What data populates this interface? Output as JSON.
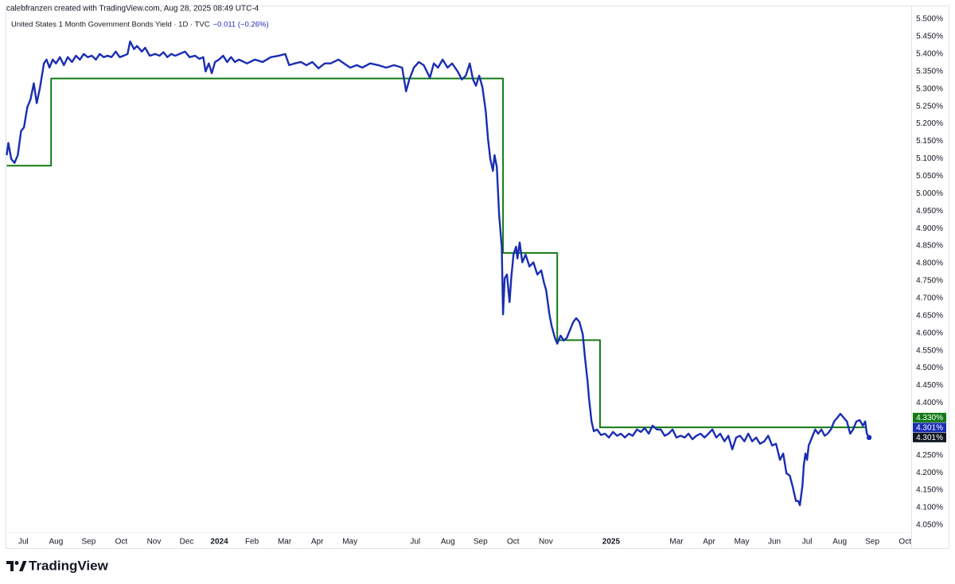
{
  "chart_data": {
    "type": "line",
    "header": "calebfranzen created with TradingView.com, Aug 28, 2025 08:49 UTC-4",
    "title": "United States 1 Month Government Bonds Yield · 1D · TVC",
    "change": "−0.011 (−0.26%)",
    "watermark": "TradingView",
    "grid": false,
    "xlim": [
      -0.52,
      27.19
    ],
    "ylim": [
      3.9815,
      5.5365
    ],
    "xticks": [
      {
        "value": 0,
        "label": "Jul"
      },
      {
        "value": 1,
        "label": "Aug"
      },
      {
        "value": 2,
        "label": "Sep"
      },
      {
        "value": 3,
        "label": "Oct"
      },
      {
        "value": 4,
        "label": "Nov"
      },
      {
        "value": 5,
        "label": "Dec"
      },
      {
        "value": 6,
        "label": "2024"
      },
      {
        "value": 7,
        "label": "Feb"
      },
      {
        "value": 8,
        "label": "Mar"
      },
      {
        "value": 9,
        "label": "Apr"
      },
      {
        "value": 10,
        "label": "May"
      },
      {
        "value": 12,
        "label": "Jul"
      },
      {
        "value": 13,
        "label": "Aug"
      },
      {
        "value": 14,
        "label": "Sep"
      },
      {
        "value": 15,
        "label": "Oct"
      },
      {
        "value": 16,
        "label": "Nov"
      },
      {
        "value": 18,
        "label": "2025"
      },
      {
        "value": 20,
        "label": "Mar"
      },
      {
        "value": 21,
        "label": "Apr"
      },
      {
        "value": 22,
        "label": "May"
      },
      {
        "value": 23,
        "label": "Jun"
      },
      {
        "value": 24,
        "label": "Jul"
      },
      {
        "value": 25,
        "label": "Aug"
      },
      {
        "value": 26,
        "label": "Sep"
      },
      {
        "value": 27,
        "label": "Oct"
      }
    ],
    "yticks": [
      {
        "value": 4.05,
        "label": "4.050%"
      },
      {
        "value": 4.1,
        "label": "4.100%"
      },
      {
        "value": 4.15,
        "label": "4.150%"
      },
      {
        "value": 4.2,
        "label": "4.200%"
      },
      {
        "value": 4.25,
        "label": "4.250%"
      },
      {
        "value": 4.3,
        "label": "4.300%"
      },
      {
        "value": 4.35,
        "label": "4.350%"
      },
      {
        "value": 4.4,
        "label": "4.400%"
      },
      {
        "value": 4.45,
        "label": "4.450%"
      },
      {
        "value": 4.5,
        "label": "4.500%"
      },
      {
        "value": 4.55,
        "label": "4.550%"
      },
      {
        "value": 4.6,
        "label": "4.600%"
      },
      {
        "value": 4.65,
        "label": "4.650%"
      },
      {
        "value": 4.7,
        "label": "4.700%"
      },
      {
        "value": 4.75,
        "label": "4.750%"
      },
      {
        "value": 4.8,
        "label": "4.800%"
      },
      {
        "value": 4.85,
        "label": "4.850%"
      },
      {
        "value": 4.9,
        "label": "4.900%"
      },
      {
        "value": 4.95,
        "label": "4.950%"
      },
      {
        "value": 5.0,
        "label": "5.000%"
      },
      {
        "value": 5.05,
        "label": "5.050%"
      },
      {
        "value": 5.1,
        "label": "5.100%"
      },
      {
        "value": 5.15,
        "label": "5.150%"
      },
      {
        "value": 5.2,
        "label": "5.200%"
      },
      {
        "value": 5.25,
        "label": "5.250%"
      },
      {
        "value": 5.3,
        "label": "5.300%"
      },
      {
        "value": 5.35,
        "label": "5.350%"
      },
      {
        "value": 5.4,
        "label": "5.400%"
      },
      {
        "value": 5.45,
        "label": "5.450%"
      },
      {
        "value": 5.5,
        "label": "5.500%"
      }
    ],
    "last_price_label": {
      "value": 4.301,
      "label": "4.301%"
    },
    "series": [
      {
        "color": "#1a2db3",
        "last_label": {
          "value": 4.301,
          "label": "4.301%"
        },
        "x": [
          -0.51,
          -0.46,
          -0.37,
          -0.27,
          -0.17,
          -0.07,
          0.02,
          0.12,
          0.22,
          0.32,
          0.41,
          0.51,
          0.63,
          0.71,
          0.8,
          0.9,
          1.0,
          1.12,
          1.24,
          1.36,
          1.49,
          1.61,
          1.73,
          1.85,
          1.97,
          2.1,
          2.22,
          2.34,
          2.46,
          2.58,
          2.7,
          2.83,
          2.95,
          3.07,
          3.19,
          3.27,
          3.39,
          3.48,
          3.63,
          3.73,
          3.87,
          4.04,
          4.17,
          4.29,
          4.41,
          4.53,
          4.65,
          4.78,
          4.95,
          5.09,
          5.26,
          5.39,
          5.51,
          5.58,
          5.68,
          5.77,
          5.87,
          5.99,
          6.12,
          6.24,
          6.36,
          6.48,
          6.6,
          6.85,
          7.09,
          7.33,
          7.58,
          7.82,
          8.02,
          8.14,
          8.31,
          8.5,
          8.67,
          8.85,
          9.04,
          9.23,
          9.41,
          9.65,
          9.82,
          10.01,
          10.21,
          10.38,
          10.62,
          10.87,
          11.11,
          11.35,
          11.6,
          11.72,
          11.82,
          11.96,
          12.11,
          12.26,
          12.45,
          12.57,
          12.7,
          12.84,
          12.99,
          13.13,
          13.3,
          13.43,
          13.55,
          13.67,
          13.77,
          13.86,
          13.96,
          14.06,
          14.16,
          14.23,
          14.3,
          14.38,
          14.43,
          14.5,
          14.57,
          14.65,
          14.69,
          14.74,
          14.81,
          14.89,
          14.94,
          15.01,
          15.09,
          15.13,
          15.2,
          15.28,
          15.38,
          15.5,
          15.62,
          15.74,
          15.86,
          15.94,
          16.01,
          16.11,
          16.18,
          16.28,
          16.35,
          16.45,
          16.55,
          16.64,
          16.74,
          16.84,
          16.93,
          17.03,
          17.13,
          17.2,
          17.28,
          17.32,
          17.4,
          17.47,
          17.57,
          17.69,
          17.81,
          17.93,
          18.06,
          18.18,
          18.3,
          18.42,
          18.54,
          18.66,
          18.79,
          18.91,
          19.03,
          19.15,
          19.27,
          19.4,
          19.52,
          19.64,
          19.76,
          19.88,
          20.0,
          20.13,
          20.25,
          20.37,
          20.49,
          20.61,
          20.74,
          20.86,
          20.98,
          21.1,
          21.22,
          21.34,
          21.47,
          21.59,
          21.71,
          21.83,
          21.95,
          22.08,
          22.2,
          22.32,
          22.44,
          22.56,
          22.69,
          22.81,
          22.93,
          23.05,
          23.17,
          23.27,
          23.37,
          23.47,
          23.56,
          23.66,
          23.73,
          23.78,
          23.86,
          23.9,
          23.95,
          24.0,
          24.05,
          24.15,
          24.25,
          24.34,
          24.44,
          24.54,
          24.63,
          24.73,
          24.83,
          24.93,
          25.02,
          25.12,
          25.22,
          25.32,
          25.41,
          25.51,
          25.61,
          25.71,
          25.78,
          25.83,
          25.9
        ],
        "values": [
          5.11,
          5.145,
          5.099,
          5.088,
          5.11,
          5.179,
          5.19,
          5.247,
          5.27,
          5.316,
          5.259,
          5.304,
          5.373,
          5.384,
          5.361,
          5.384,
          5.373,
          5.391,
          5.368,
          5.391,
          5.377,
          5.395,
          5.384,
          5.4,
          5.391,
          5.395,
          5.384,
          5.4,
          5.391,
          5.395,
          5.391,
          5.407,
          5.391,
          5.395,
          5.4,
          5.436,
          5.414,
          5.423,
          5.407,
          5.418,
          5.395,
          5.4,
          5.395,
          5.405,
          5.391,
          5.4,
          5.395,
          5.4,
          5.407,
          5.391,
          5.395,
          5.386,
          5.391,
          5.35,
          5.373,
          5.345,
          5.377,
          5.384,
          5.395,
          5.377,
          5.391,
          5.377,
          5.384,
          5.373,
          5.384,
          5.377,
          5.391,
          5.395,
          5.4,
          5.368,
          5.373,
          5.377,
          5.368,
          5.377,
          5.359,
          5.373,
          5.373,
          5.384,
          5.373,
          5.361,
          5.368,
          5.361,
          5.373,
          5.368,
          5.361,
          5.368,
          5.361,
          5.293,
          5.327,
          5.361,
          5.377,
          5.368,
          5.332,
          5.373,
          5.361,
          5.384,
          5.361,
          5.373,
          5.35,
          5.327,
          5.338,
          5.373,
          5.327,
          5.309,
          5.338,
          5.304,
          5.236,
          5.156,
          5.099,
          5.065,
          5.11,
          5.076,
          4.939,
          4.848,
          4.654,
          4.757,
          4.768,
          4.689,
          4.757,
          4.825,
          4.848,
          4.814,
          4.86,
          4.803,
          4.825,
          4.791,
          4.803,
          4.768,
          4.78,
          4.746,
          4.723,
          4.654,
          4.62,
          4.586,
          4.57,
          4.593,
          4.579,
          4.586,
          4.609,
          4.632,
          4.643,
          4.632,
          4.597,
          4.529,
          4.461,
          4.415,
          4.347,
          4.319,
          4.324,
          4.308,
          4.312,
          4.301,
          4.317,
          4.306,
          4.312,
          4.301,
          4.312,
          4.306,
          4.324,
          4.317,
          4.328,
          4.312,
          4.335,
          4.324,
          4.324,
          4.306,
          4.312,
          4.324,
          4.301,
          4.306,
          4.301,
          4.312,
          4.296,
          4.306,
          4.312,
          4.301,
          4.312,
          4.324,
          4.301,
          4.312,
          4.29,
          4.306,
          4.267,
          4.301,
          4.306,
          4.29,
          4.312,
          4.29,
          4.301,
          4.283,
          4.29,
          4.306,
          4.278,
          4.283,
          4.237,
          4.255,
          4.198,
          4.192,
          4.16,
          4.119,
          4.119,
          4.107,
          4.164,
          4.221,
          4.255,
          4.237,
          4.278,
          4.301,
          4.324,
          4.312,
          4.324,
          4.306,
          4.312,
          4.324,
          4.347,
          4.358,
          4.369,
          4.358,
          4.347,
          4.312,
          4.324,
          4.347,
          4.351,
          4.335,
          4.347,
          4.312,
          4.301
        ]
      },
      {
        "color": "#137a13",
        "last_label": {
          "value": 4.33,
          "label": "4.330%"
        },
        "x": [
          -0.51,
          0.85,
          0.85,
          14.69,
          14.69,
          16.35,
          16.35,
          17.66,
          17.66,
          25.83
        ],
        "values": [
          5.08,
          5.08,
          5.33,
          5.33,
          4.83,
          4.83,
          4.58,
          4.58,
          4.33,
          4.33
        ]
      }
    ]
  }
}
